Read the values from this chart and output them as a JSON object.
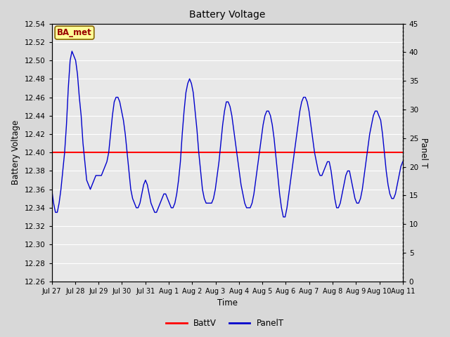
{
  "title": "Battery Voltage",
  "xlabel": "Time",
  "ylabel_left": "Battery Voltage",
  "ylabel_right": "Panel T",
  "ylim_left": [
    12.26,
    12.54
  ],
  "ylim_right": [
    0,
    45
  ],
  "yticks_left": [
    12.26,
    12.28,
    12.3,
    12.32,
    12.34,
    12.36,
    12.38,
    12.4,
    12.42,
    12.44,
    12.46,
    12.48,
    12.5,
    12.52,
    12.54
  ],
  "yticks_right": [
    0,
    5,
    10,
    15,
    20,
    25,
    30,
    35,
    40,
    45
  ],
  "batt_v": 12.4,
  "batt_color": "#ff0000",
  "panel_color": "#0000cc",
  "bg_color": "#d8d8d8",
  "plot_bg_color": "#e8e8e8",
  "annotation_text": "BA_met",
  "annotation_text_color": "#990000",
  "annotation_bg": "#ffff99",
  "annotation_border": "#886600",
  "legend_batt_label": "BattV",
  "legend_panel_label": "PanelT",
  "x_tick_labels": [
    "Jul 27",
    "Jul 28",
    "Jul 29",
    "Jul 30",
    "Jul 31",
    "Aug 1",
    "Aug 2",
    "Aug 3",
    "Aug 4",
    "Aug 5",
    "Aug 6",
    "Aug 7",
    "Aug 8",
    "Aug 9",
    "Aug 10",
    "Aug 11"
  ],
  "panel_t_data": [
    12.36,
    12.345,
    12.335,
    12.335,
    12.345,
    12.36,
    12.38,
    12.4,
    12.43,
    12.47,
    12.5,
    12.51,
    12.505,
    12.5,
    12.485,
    12.46,
    12.44,
    12.41,
    12.39,
    12.37,
    12.365,
    12.36,
    12.365,
    12.37,
    12.375,
    12.375,
    12.375,
    12.375,
    12.38,
    12.385,
    12.39,
    12.4,
    12.42,
    12.44,
    12.455,
    12.46,
    12.46,
    12.455,
    12.445,
    12.435,
    12.42,
    12.4,
    12.38,
    12.36,
    12.35,
    12.345,
    12.34,
    12.34,
    12.345,
    12.355,
    12.365,
    12.37,
    12.365,
    12.355,
    12.345,
    12.34,
    12.335,
    12.335,
    12.34,
    12.345,
    12.35,
    12.355,
    12.355,
    12.35,
    12.345,
    12.34,
    12.34,
    12.345,
    12.355,
    12.37,
    12.39,
    12.42,
    12.445,
    12.465,
    12.475,
    12.48,
    12.475,
    12.465,
    12.445,
    12.425,
    12.4,
    12.38,
    12.36,
    12.35,
    12.345,
    12.345,
    12.345,
    12.345,
    12.35,
    12.36,
    12.375,
    12.39,
    12.41,
    12.43,
    12.445,
    12.455,
    12.455,
    12.45,
    12.44,
    12.425,
    12.41,
    12.395,
    12.38,
    12.365,
    12.355,
    12.345,
    12.34,
    12.34,
    12.34,
    12.345,
    12.355,
    12.37,
    12.385,
    12.4,
    12.415,
    12.43,
    12.44,
    12.445,
    12.445,
    12.44,
    12.43,
    12.415,
    12.395,
    12.375,
    12.355,
    12.34,
    12.33,
    12.33,
    12.34,
    12.355,
    12.37,
    12.385,
    12.4,
    12.415,
    12.43,
    12.445,
    12.455,
    12.46,
    12.46,
    12.455,
    12.445,
    12.43,
    12.415,
    12.4,
    12.39,
    12.38,
    12.375,
    12.375,
    12.38,
    12.385,
    12.39,
    12.39,
    12.38,
    12.365,
    12.35,
    12.34,
    12.34,
    12.345,
    12.355,
    12.365,
    12.375,
    12.38,
    12.38,
    12.37,
    12.36,
    12.35,
    12.345,
    12.345,
    12.35,
    12.36,
    12.375,
    12.39,
    12.405,
    12.42,
    12.43,
    12.44,
    12.445,
    12.445,
    12.44,
    12.435,
    12.42,
    12.4,
    12.38,
    12.365,
    12.355,
    12.35,
    12.35,
    12.355,
    12.365,
    12.375,
    12.385,
    12.39
  ]
}
